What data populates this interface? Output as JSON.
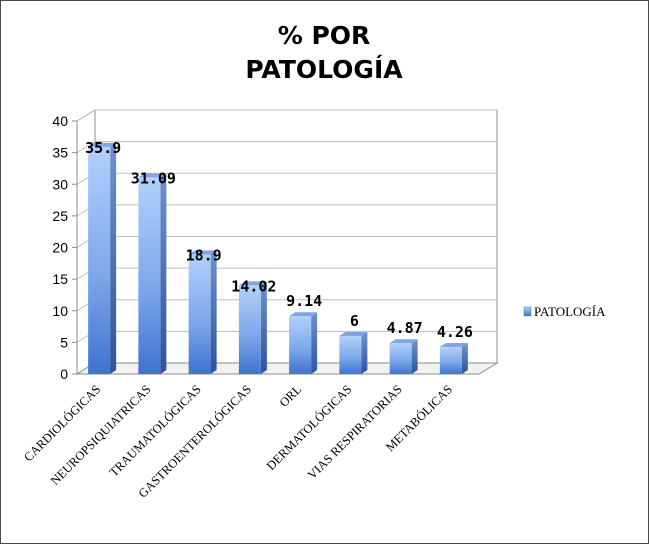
{
  "chart_data": {
    "type": "bar",
    "title_lines": [
      "% POR",
      "PATOLOGÍA"
    ],
    "categories": [
      "CARDIOLÓGICAS",
      "NEUROPSIQUIATRICAS",
      "TRAUMATOLÓGICAS",
      "GASTROENTEROLÓGICAS",
      "ORL",
      "DERMATOLÓGICAS",
      "VIAS RESPIRATORIAS",
      "METABÓLICAS"
    ],
    "series": [
      {
        "name": "PATOLOGÍA",
        "values": [
          35.9,
          31.09,
          18.9,
          14.02,
          9.14,
          6,
          4.87,
          4.26
        ]
      }
    ],
    "data_labels": [
      "35.9",
      "31.09",
      "18.9",
      "14.02",
      "9.14",
      "6",
      "4.87",
      "4.26"
    ],
    "yticks": [
      "0",
      "5",
      "10",
      "15",
      "20",
      "25",
      "30",
      "35",
      "40"
    ],
    "ylim": [
      0,
      40
    ],
    "grid": true,
    "legend_position": "right",
    "style": "3d-columns",
    "colors": {
      "bar_light": "#a9c9f7",
      "bar_mid": "#6f9ee6",
      "bar_dark": "#3f6fc6",
      "grid": "#bfbfbf",
      "axis": "#8c8c8c"
    }
  }
}
